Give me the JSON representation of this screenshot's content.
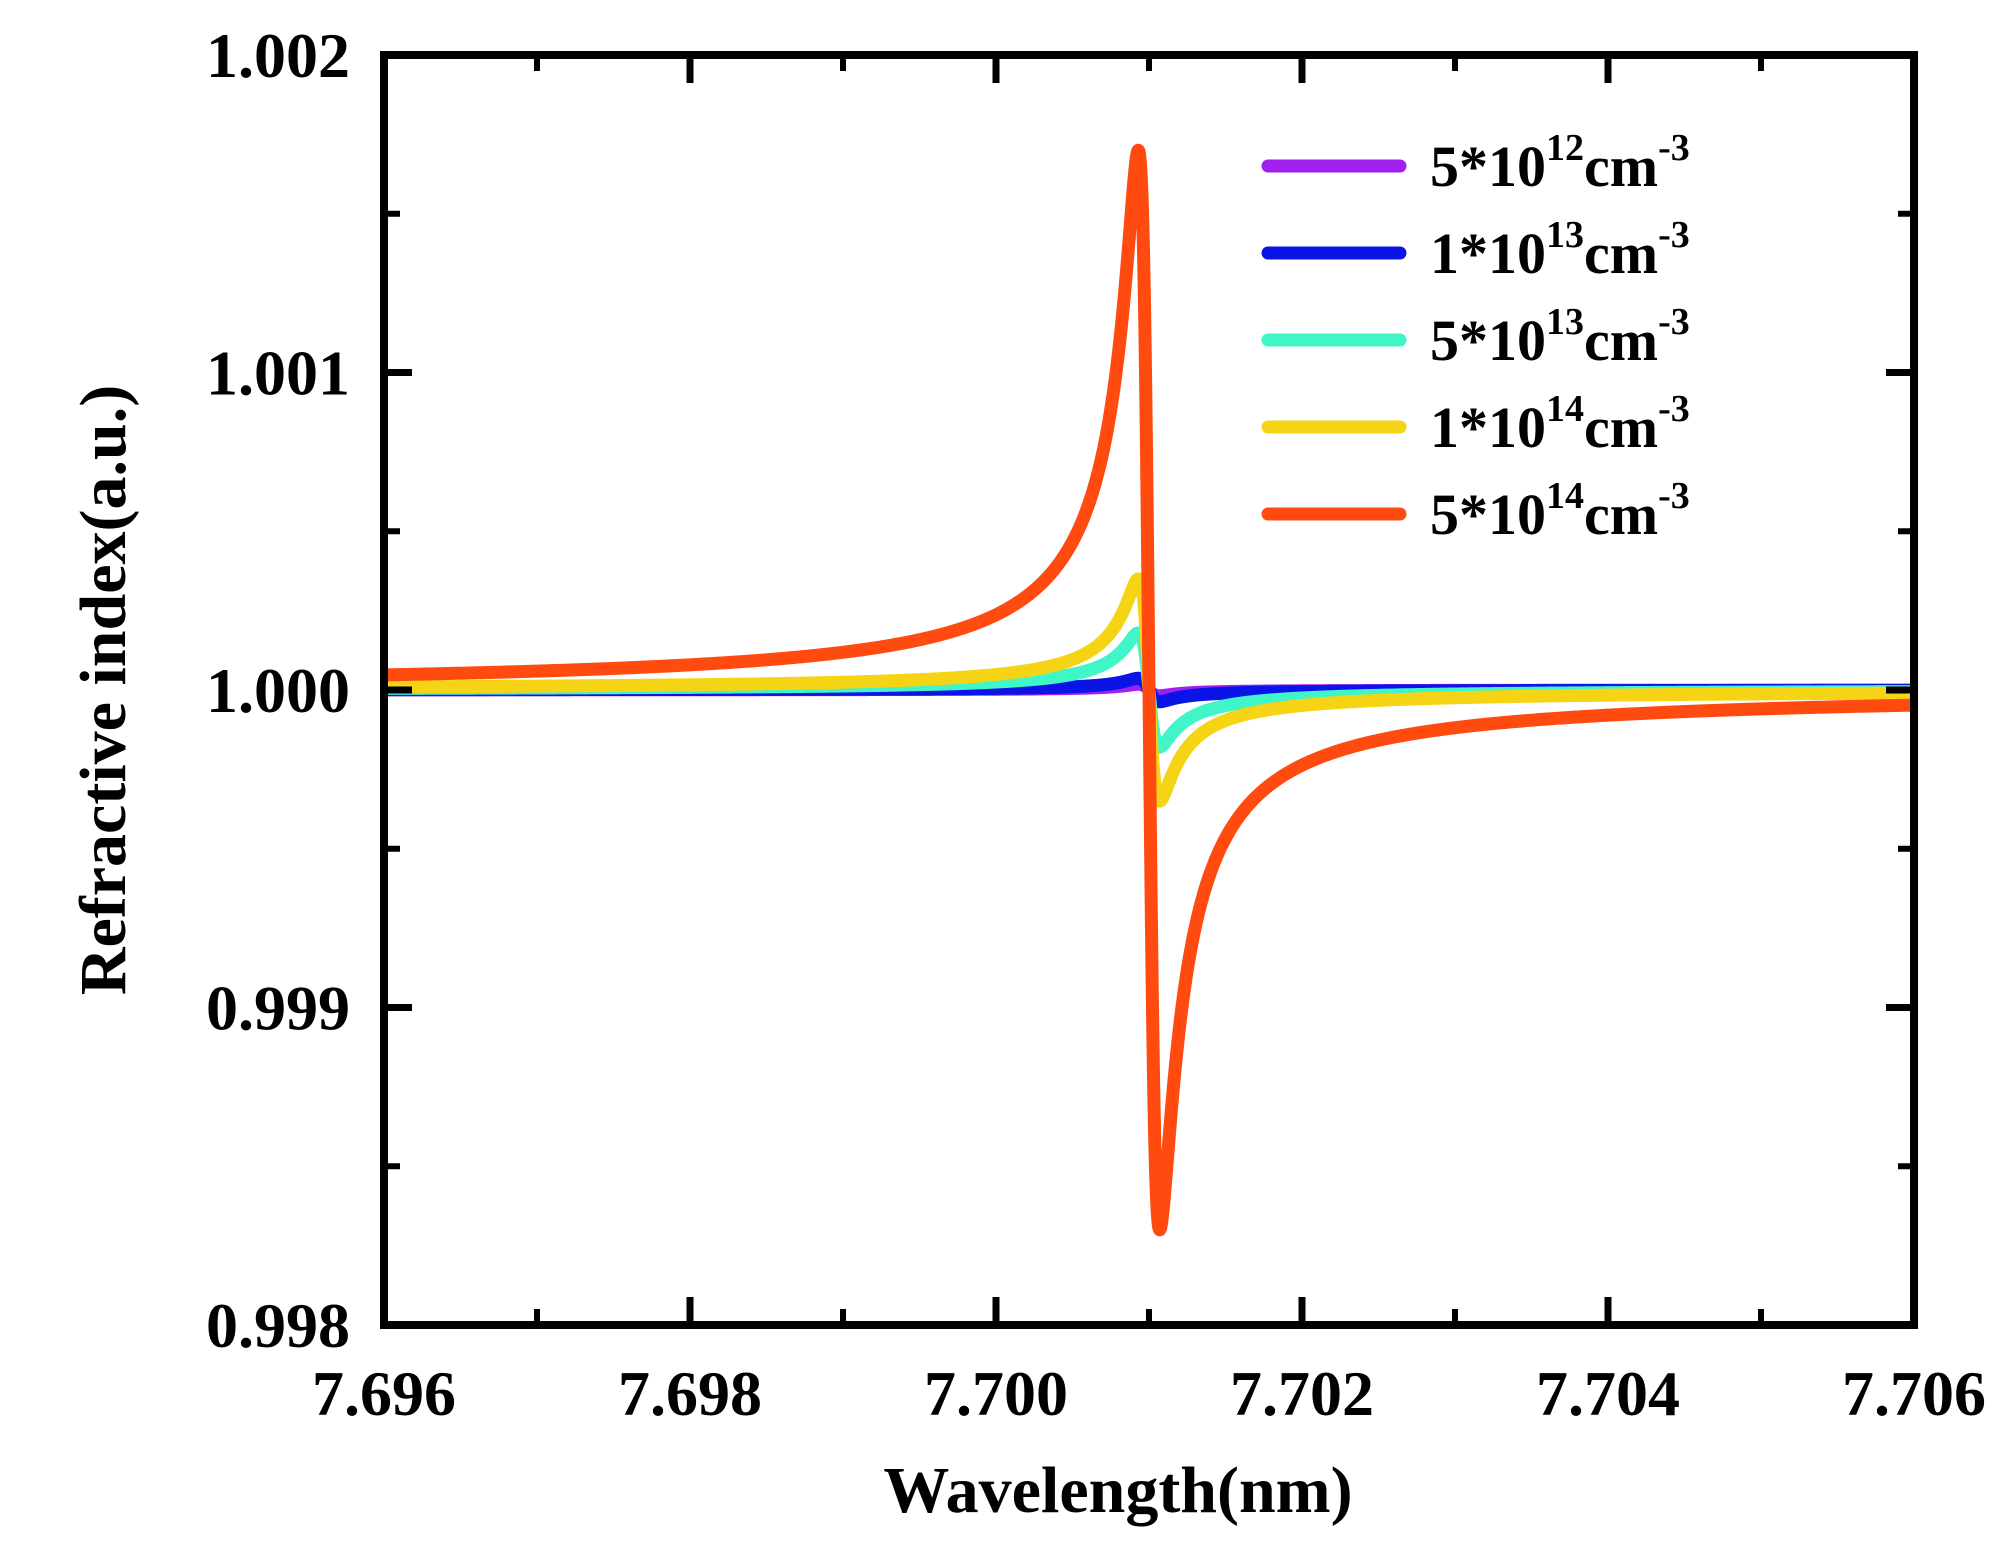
{
  "chart_data": {
    "type": "line",
    "title": "",
    "xlabel": "Wavelength(nm)",
    "ylabel": "Refractive index(a.u.)",
    "xlim": [
      7.696,
      7.706
    ],
    "ylim": [
      0.998,
      1.002
    ],
    "xticks": [
      7.696,
      7.698,
      7.7,
      7.702,
      7.704,
      7.706
    ],
    "xtick_labels": [
      "7.696",
      "7.698",
      "7.700",
      "7.702",
      "7.704",
      "7.706"
    ],
    "yticks": [
      0.998,
      0.999,
      1.0,
      1.001,
      1.002
    ],
    "ytick_labels": [
      "0.998",
      "0.999",
      "1.000",
      "1.001",
      "1.002"
    ],
    "grid": false,
    "legend_position": "top-right",
    "resonance_center": 7.701,
    "series": [
      {
        "name": "5*10^12 cm^-3",
        "legend_base": "5*10",
        "legend_exp": "12",
        "legend_unit": "cm",
        "legend_unit_exp": "-3",
        "color": "#a020f0",
        "peak": 1.000018,
        "dip": 0.999982
      },
      {
        "name": "1*10^13 cm^-3",
        "legend_base": "1*10",
        "legend_exp": "13",
        "legend_unit": "cm",
        "legend_unit_exp": "-3",
        "color": "#0a14e6",
        "peak": 1.000037,
        "dip": 0.999963
      },
      {
        "name": "5*10^13 cm^-3",
        "legend_base": "5*10",
        "legend_exp": "13",
        "legend_unit": "cm",
        "legend_unit_exp": "-3",
        "color": "#40f5c8",
        "peak": 1.00018,
        "dip": 0.99982
      },
      {
        "name": "1*10^14 cm^-3",
        "legend_base": "1*10",
        "legend_exp": "14",
        "legend_unit": "cm",
        "legend_unit_exp": "-3",
        "color": "#f5d416",
        "peak": 1.00035,
        "dip": 0.99965
      },
      {
        "name": "5*10^14 cm^-3",
        "legend_base": "5*10",
        "legend_exp": "14",
        "legend_unit": "cm",
        "legend_unit_exp": "-3",
        "color": "#ff4a10",
        "peak": 1.0017,
        "dip": 0.9983
      }
    ]
  }
}
